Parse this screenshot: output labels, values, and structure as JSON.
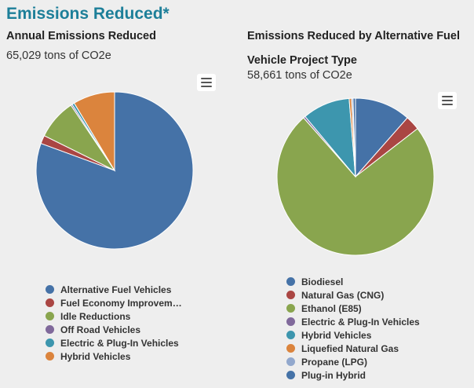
{
  "page": {
    "title": "Emissions Reduced*"
  },
  "colors": {
    "blue": "#4572a7",
    "red": "#aa4643",
    "green": "#89a54e",
    "purple": "#80699b",
    "teal": "#3d96ae",
    "orange": "#db843d",
    "lightblue": "#92a8cd",
    "darkblue": "#4572a7"
  },
  "chart_data": [
    {
      "type": "pie",
      "title": "Annual Emissions Reduced",
      "subtitle": "65,029 tons of CO2e",
      "unit": "tons of CO2e",
      "categories": [
        "Alternative Fuel Vehicles",
        "Fuel Economy Improvem…",
        "Idle Reductions",
        "Off Road Vehicles",
        "Electric & Plug-In Vehicles",
        "Hybrid Vehicles"
      ],
      "values": [
        80.6,
        1.7,
        8.3,
        0.3,
        0.5,
        8.6
      ],
      "colors": [
        "#4572a7",
        "#aa4643",
        "#89a54e",
        "#80699b",
        "#3d96ae",
        "#db843d"
      ],
      "legend_position": "bottom"
    },
    {
      "type": "pie",
      "title": "Emissions Reduced by Alternative Fuel Vehicle Project Type",
      "subtitle": "58,661 tons of CO2e",
      "unit": "tons of CO2e",
      "categories": [
        "Biodiesel",
        "Natural Gas (CNG)",
        "Ethanol (E85)",
        "Electric & Plug-In Vehicles",
        "Hybrid Vehicles",
        "Liquefied Natural Gas",
        "Propane (LPG)",
        "Plug-in Hybrid"
      ],
      "values": [
        11.5,
        3.0,
        74.0,
        0.4,
        9.8,
        0.5,
        0.3,
        0.5
      ],
      "colors": [
        "#4572a7",
        "#aa4643",
        "#89a54e",
        "#80699b",
        "#3d96ae",
        "#db843d",
        "#92a8cd",
        "#4572a7"
      ],
      "legend_position": "bottom"
    }
  ]
}
